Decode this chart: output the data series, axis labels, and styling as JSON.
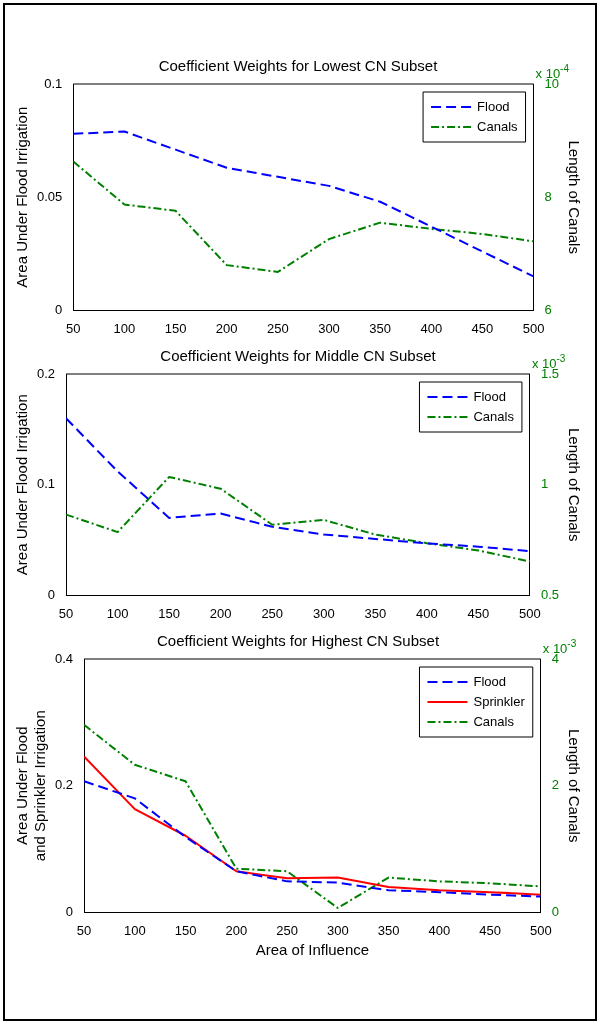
{
  "chart_data": [
    {
      "type": "line",
      "title": "Coefficient Weights for Lowest CN Subset",
      "ylabel": "Area Under Flood Irrigation",
      "y2label": "Length of Canals",
      "x": [
        50,
        100,
        150,
        200,
        250,
        300,
        350,
        400,
        450,
        500
      ],
      "xlim": [
        50,
        500
      ],
      "xticks": [
        50,
        100,
        150,
        200,
        250,
        300,
        350,
        400,
        450,
        500
      ],
      "ylim": [
        0,
        0.1
      ],
      "yticks": [
        0,
        0.05,
        0.1
      ],
      "y2lim": [
        6,
        10
      ],
      "y2ticks": [
        6,
        8,
        10
      ],
      "legend": "top right",
      "marker": "none",
      "annotations": [
        "x 10$^{-4}$"
      ],
      "series": [
        {
          "name": "Flood",
          "color": "#0000ff",
          "line_style": "dashed",
          "values": [
            0.078,
            0.079,
            0.071,
            0.063,
            0.059,
            0.055,
            0.048,
            0.037,
            0.026,
            0.015
          ]
        },
        {
          "name": "Canals",
          "color": "#008000",
          "line_style": "dotted",
          "axis": "y2",
          "values": [
            8.63,
            7.87,
            7.76,
            6.8,
            6.68,
            7.26,
            7.55,
            7.44,
            7.35,
            7.22
          ]
        }
      ]
    },
    {
      "type": "line",
      "title": "Coefficient Weights for Middle CN Subset",
      "ylabel": "Area Under Flood Irrigation",
      "y2label": "Length of Canals",
      "x": [
        50,
        100,
        150,
        200,
        250,
        300,
        350,
        400,
        450,
        500
      ],
      "xlim": [
        50,
        500
      ],
      "xticks": [
        50,
        100,
        150,
        200,
        250,
        300,
        350,
        400,
        450,
        500
      ],
      "ylim": [
        0,
        0.2
      ],
      "yticks": [
        0,
        0.1,
        0.2
      ],
      "y2lim": [
        0.5,
        1.5
      ],
      "y2ticks": [
        0.5,
        1,
        1.5
      ],
      "legend": "top right",
      "marker": "none",
      "annotations": [
        "x 10$^{-3}$"
      ],
      "series": [
        {
          "name": "Flood",
          "color": "#0000ff",
          "line_style": "dashed",
          "values": [
            0.16,
            0.112,
            0.07,
            0.074,
            0.062,
            0.055,
            0.051,
            0.047,
            0.044,
            0.04
          ]
        },
        {
          "name": "Canals",
          "color": "#008000",
          "line_style": "dotted",
          "axis": "y2",
          "values": [
            0.865,
            0.786,
            1.035,
            0.982,
            0.819,
            0.841,
            0.775,
            0.736,
            0.703,
            0.653
          ]
        }
      ]
    },
    {
      "type": "line",
      "title": "Coefficient Weights for Highest CN Subset",
      "xlabel": "Area of Influence",
      "ylabel": "Area Under Flood\nand Sprinkler Irrigation",
      "y2label": "Length of Canals",
      "x": [
        50,
        100,
        150,
        200,
        250,
        300,
        350,
        400,
        450,
        500
      ],
      "xlim": [
        50,
        500
      ],
      "xticks": [
        50,
        100,
        150,
        200,
        250,
        300,
        350,
        400,
        450,
        500
      ],
      "ylim": [
        0,
        0.4
      ],
      "yticks": [
        0,
        0.2,
        0.4
      ],
      "y2lim": [
        0,
        4
      ],
      "y2ticks": [
        0,
        2,
        4
      ],
      "legend": "top right",
      "marker": "none",
      "annotations": [
        "x 10$^{-3}$"
      ],
      "series": [
        {
          "name": "Flood",
          "color": "#0000ff",
          "line_style": "dashed",
          "values": [
            0.207,
            0.18,
            0.119,
            0.065,
            0.049,
            0.047,
            0.035,
            0.032,
            0.028,
            0.025
          ]
        },
        {
          "name": "Sprinkler",
          "color": "#ff0000",
          "line_style": "solid",
          "values": [
            0.246,
            0.163,
            0.121,
            0.065,
            0.054,
            0.055,
            0.04,
            0.035,
            0.032,
            0.028
          ]
        },
        {
          "name": "Canals",
          "color": "#008000",
          "line_style": "dotted",
          "axis": "y2",
          "values": [
            2.96,
            2.33,
            2.07,
            0.69,
            0.65,
            0.07,
            0.55,
            0.49,
            0.46,
            0.41
          ]
        }
      ]
    }
  ]
}
